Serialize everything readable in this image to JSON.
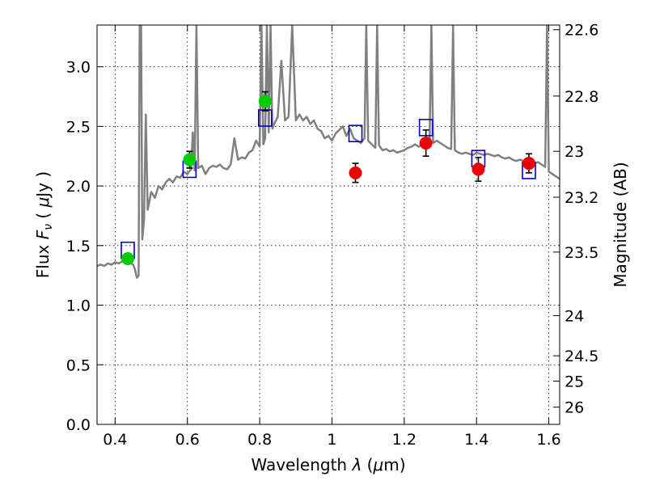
{
  "chart_data": {
    "type": "scatter",
    "title": "",
    "xlabel": "Wavelength  λ (μm)",
    "ylabel": "Flux  F_ν  ( μJy )",
    "ylabel_parts": {
      "pre": "Flux  ",
      "var": "F",
      "sub": "ν",
      "post": "  ( ",
      "mu": "μ",
      "unit": "Jy )"
    },
    "xlabel_parts": {
      "pre": "Wavelength  ",
      "var": "λ",
      "post1": " (",
      "mu": "μ",
      "post2": "m)"
    },
    "y2label": "Magnitude (AB)",
    "xlim": [
      0.35,
      1.63
    ],
    "ylim": [
      0.0,
      3.35
    ],
    "grid": true,
    "x_ticks": [
      {
        "value": 0.4,
        "label": "0.4"
      },
      {
        "value": 0.6,
        "label": "0.6"
      },
      {
        "value": 0.8,
        "label": "0.8"
      },
      {
        "value": 1.0,
        "label": "1"
      },
      {
        "value": 1.2,
        "label": "1.2"
      },
      {
        "value": 1.4,
        "label": "1.4"
      },
      {
        "value": 1.6,
        "label": "1.6"
      }
    ],
    "y_ticks": [
      {
        "value": 0.0,
        "label": "0.0"
      },
      {
        "value": 0.5,
        "label": "0.5"
      },
      {
        "value": 1.0,
        "label": "1.0"
      },
      {
        "value": 1.5,
        "label": "1.5"
      },
      {
        "value": 2.0,
        "label": "2.0"
      },
      {
        "value": 2.5,
        "label": "2.5"
      },
      {
        "value": 3.0,
        "label": "3.0"
      }
    ],
    "y2_ticks": [
      {
        "value": 22.6,
        "label": "22.6"
      },
      {
        "value": 22.8,
        "label": "22.8"
      },
      {
        "value": 23.0,
        "label": "23"
      },
      {
        "value": 23.2,
        "label": "23.2"
      },
      {
        "value": 23.5,
        "label": "23.5"
      },
      {
        "value": 24.0,
        "label": "24"
      },
      {
        "value": 24.5,
        "label": "24.5"
      },
      {
        "value": 25.0,
        "label": "25"
      },
      {
        "value": 26.0,
        "label": "26"
      }
    ],
    "colors": {
      "model": "#808080",
      "green_points": "#00cc00",
      "red_points": "#ee0000",
      "model_boxes": "#0000cc",
      "errorbars": "#000000"
    },
    "model_spectrum": [
      [
        0.35,
        1.33
      ],
      [
        0.36,
        1.34
      ],
      [
        0.37,
        1.33
      ],
      [
        0.38,
        1.35
      ],
      [
        0.39,
        1.34
      ],
      [
        0.4,
        1.36
      ],
      [
        0.41,
        1.35
      ],
      [
        0.42,
        1.37
      ],
      [
        0.43,
        1.36
      ],
      [
        0.44,
        1.36
      ],
      [
        0.45,
        1.34
      ],
      [
        0.455,
        1.3
      ],
      [
        0.46,
        1.23
      ],
      [
        0.465,
        1.25
      ],
      [
        0.468,
        3.35
      ],
      [
        0.472,
        3.35
      ],
      [
        0.475,
        1.55
      ],
      [
        0.48,
        1.72
      ],
      [
        0.485,
        2.6
      ],
      [
        0.49,
        1.8
      ],
      [
        0.5,
        1.95
      ],
      [
        0.51,
        1.9
      ],
      [
        0.52,
        2.0
      ],
      [
        0.53,
        1.97
      ],
      [
        0.54,
        2.03
      ],
      [
        0.55,
        2.06
      ],
      [
        0.56,
        2.03
      ],
      [
        0.57,
        2.08
      ],
      [
        0.58,
        2.07
      ],
      [
        0.59,
        2.12
      ],
      [
        0.6,
        2.1
      ],
      [
        0.61,
        2.14
      ],
      [
        0.615,
        2.45
      ],
      [
        0.62,
        2.13
      ],
      [
        0.625,
        3.35
      ],
      [
        0.63,
        2.15
      ],
      [
        0.64,
        2.17
      ],
      [
        0.65,
        2.1
      ],
      [
        0.66,
        2.15
      ],
      [
        0.67,
        2.17
      ],
      [
        0.68,
        2.16
      ],
      [
        0.69,
        2.18
      ],
      [
        0.7,
        2.15
      ],
      [
        0.71,
        2.14
      ],
      [
        0.72,
        2.18
      ],
      [
        0.73,
        2.4
      ],
      [
        0.74,
        2.22
      ],
      [
        0.75,
        2.24
      ],
      [
        0.76,
        2.23
      ],
      [
        0.77,
        2.28
      ],
      [
        0.78,
        2.3
      ],
      [
        0.79,
        2.38
      ],
      [
        0.8,
        2.33
      ],
      [
        0.805,
        3.35
      ],
      [
        0.81,
        2.35
      ],
      [
        0.815,
        2.4
      ],
      [
        0.82,
        3.35
      ],
      [
        0.825,
        2.45
      ],
      [
        0.83,
        3.35
      ],
      [
        0.835,
        2.48
      ],
      [
        0.84,
        2.52
      ],
      [
        0.85,
        2.58
      ],
      [
        0.86,
        3.05
      ],
      [
        0.87,
        2.55
      ],
      [
        0.88,
        2.58
      ],
      [
        0.89,
        3.35
      ],
      [
        0.9,
        2.55
      ],
      [
        0.91,
        2.6
      ],
      [
        0.92,
        2.55
      ],
      [
        0.93,
        2.58
      ],
      [
        0.94,
        2.52
      ],
      [
        0.95,
        2.55
      ],
      [
        0.96,
        2.48
      ],
      [
        0.97,
        2.46
      ],
      [
        0.98,
        2.4
      ],
      [
        0.99,
        2.42
      ],
      [
        1.0,
        2.38
      ],
      [
        1.01,
        2.44
      ],
      [
        1.02,
        2.47
      ],
      [
        1.03,
        2.5
      ],
      [
        1.04,
        2.42
      ],
      [
        1.05,
        2.48
      ],
      [
        1.06,
        2.4
      ],
      [
        1.07,
        2.38
      ],
      [
        1.08,
        2.36
      ],
      [
        1.09,
        2.4
      ],
      [
        1.095,
        3.35
      ],
      [
        1.1,
        2.38
      ],
      [
        1.11,
        2.35
      ],
      [
        1.12,
        2.32
      ],
      [
        1.125,
        3.35
      ],
      [
        1.13,
        2.34
      ],
      [
        1.14,
        2.3
      ],
      [
        1.15,
        2.31
      ],
      [
        1.16,
        2.29
      ],
      [
        1.17,
        2.3
      ],
      [
        1.18,
        2.28
      ],
      [
        1.19,
        2.29
      ],
      [
        1.2,
        2.3
      ],
      [
        1.21,
        2.32
      ],
      [
        1.22,
        2.33
      ],
      [
        1.23,
        2.35
      ],
      [
        1.24,
        2.33
      ],
      [
        1.25,
        2.35
      ],
      [
        1.26,
        2.36
      ],
      [
        1.27,
        2.35
      ],
      [
        1.275,
        3.35
      ],
      [
        1.28,
        2.36
      ],
      [
        1.29,
        2.38
      ],
      [
        1.3,
        2.36
      ],
      [
        1.31,
        2.34
      ],
      [
        1.32,
        2.32
      ],
      [
        1.33,
        2.31
      ],
      [
        1.335,
        3.35
      ],
      [
        1.34,
        2.3
      ],
      [
        1.35,
        2.28
      ],
      [
        1.36,
        2.27
      ],
      [
        1.37,
        2.28
      ],
      [
        1.38,
        2.27
      ],
      [
        1.39,
        2.26
      ],
      [
        1.4,
        2.28
      ],
      [
        1.41,
        2.27
      ],
      [
        1.42,
        2.26
      ],
      [
        1.43,
        2.27
      ],
      [
        1.44,
        2.26
      ],
      [
        1.45,
        2.25
      ],
      [
        1.46,
        2.26
      ],
      [
        1.47,
        2.24
      ],
      [
        1.48,
        2.23
      ],
      [
        1.49,
        2.24
      ],
      [
        1.5,
        2.22
      ],
      [
        1.51,
        2.21
      ],
      [
        1.52,
        2.22
      ],
      [
        1.53,
        2.21
      ],
      [
        1.54,
        2.2
      ],
      [
        1.55,
        2.19
      ],
      [
        1.56,
        2.19
      ],
      [
        1.57,
        2.2
      ],
      [
        1.58,
        2.18
      ],
      [
        1.59,
        2.16
      ],
      [
        1.595,
        3.35
      ],
      [
        1.6,
        2.12
      ],
      [
        1.61,
        2.1
      ],
      [
        1.62,
        2.08
      ],
      [
        1.63,
        2.06
      ]
    ],
    "observed_points": [
      {
        "x": 0.435,
        "y": 1.39,
        "err": 0.04,
        "group": "green"
      },
      {
        "x": 0.606,
        "y": 2.22,
        "err": 0.07,
        "group": "green"
      },
      {
        "x": 0.815,
        "y": 2.71,
        "err": 0.08,
        "group": "green"
      },
      {
        "x": 1.065,
        "y": 2.11,
        "err": 0.08,
        "group": "red"
      },
      {
        "x": 1.26,
        "y": 2.36,
        "err": 0.11,
        "group": "red"
      },
      {
        "x": 1.405,
        "y": 2.14,
        "err": 0.1,
        "group": "red"
      },
      {
        "x": 1.545,
        "y": 2.19,
        "err": 0.08,
        "group": "red"
      }
    ],
    "model_photometry": [
      {
        "x": 0.435,
        "y": 1.46
      },
      {
        "x": 0.606,
        "y": 2.14
      },
      {
        "x": 0.815,
        "y": 2.57
      },
      {
        "x": 1.065,
        "y": 2.44
      },
      {
        "x": 1.26,
        "y": 2.49
      },
      {
        "x": 1.405,
        "y": 2.23
      },
      {
        "x": 1.545,
        "y": 2.13
      }
    ]
  }
}
